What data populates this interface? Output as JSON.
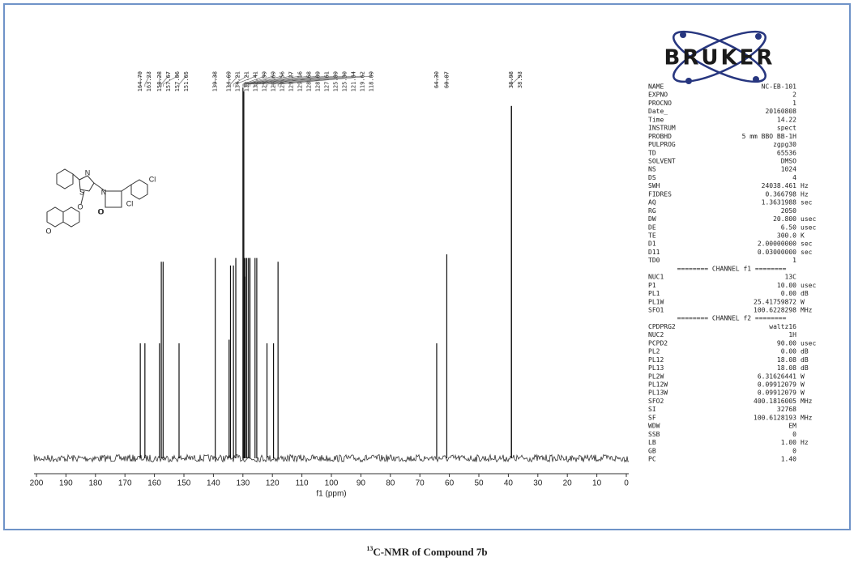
{
  "chart_data": {
    "type": "spectrum",
    "xlabel": "f1 (ppm)",
    "x": [
      164.79,
      163.23,
      158.28,
      157.67,
      157.06,
      151.65,
      139.38,
      134.69,
      134.21,
      133.21,
      132.41,
      129.99,
      129.69,
      129.56,
      129.27,
      129.16,
      128.68,
      128.09,
      127.61,
      125.89,
      125.3,
      121.84,
      119.62,
      118.09,
      64.3,
      60.87,
      38.98,
      38.93
    ],
    "x_labels": [
      "164.79",
      "163.23",
      "158.28",
      "157.67",
      "157.06",
      "151.65",
      "139.38",
      "134.69",
      "134.21",
      "133.21",
      "132.41",
      "129.99",
      "129.69",
      "129.56",
      "129.27",
      "129.16",
      "128.68",
      "128.09",
      "127.61",
      "125.89",
      "125.30",
      "121.84",
      "119.62",
      "118.09",
      "64.30",
      "60.87",
      "38.98",
      "38.93"
    ],
    "values": [
      31,
      31,
      31,
      53,
      53,
      31,
      54,
      32,
      52,
      52,
      54,
      100,
      99,
      54,
      49,
      54,
      54,
      54,
      54,
      54,
      54,
      31,
      31,
      53,
      31,
      55,
      95,
      95
    ],
    "color": "#111111",
    "xlim": [
      200,
      0
    ],
    "xticks": [
      200,
      190,
      180,
      170,
      160,
      150,
      140,
      130,
      120,
      110,
      100,
      90,
      80,
      70,
      60,
      50,
      40,
      30,
      20,
      10,
      0
    ],
    "ylim": [
      0,
      100
    ]
  },
  "logo": "BRUKER",
  "structure_labels": [
    "N",
    "S",
    "O",
    "O",
    "O",
    "N",
    "O",
    "Cl",
    "Cl"
  ],
  "parameters": [
    [
      "NAME",
      "NC-EB-101"
    ],
    [
      "EXPNO",
      "2"
    ],
    [
      "PROCNO",
      "1"
    ],
    [
      "Date_",
      "20160808"
    ],
    [
      "Time",
      "14.22"
    ],
    [
      "INSTRUM",
      "spect"
    ],
    [
      "PROBHD",
      "5 mm BBO BB-1H"
    ],
    [
      "PULPROG",
      "zgpg30"
    ],
    [
      "TD",
      "65536"
    ],
    [
      "SOLVENT",
      "DMSO"
    ],
    [
      "NS",
      "1024"
    ],
    [
      "DS",
      "4"
    ],
    [
      "SWH",
      "24038.461",
      "Hz"
    ],
    [
      "FIDRES",
      "0.366798",
      "Hz"
    ],
    [
      "AQ",
      "1.3631988",
      "sec"
    ],
    [
      "RG",
      "2050"
    ],
    [
      "DW",
      "20.800",
      "usec"
    ],
    [
      "DE",
      "6.50",
      "usec"
    ],
    [
      "TE",
      "300.0",
      "K"
    ],
    [
      "D1",
      "2.00000000",
      "sec"
    ],
    [
      "D11",
      "0.03000000",
      "sec"
    ],
    [
      "TD0",
      "1"
    ],
    [
      "======== CHANNEL f1 ========"
    ],
    [
      "NUC1",
      "13C"
    ],
    [
      "P1",
      "10.00",
      "usec"
    ],
    [
      "PL1",
      "0.00",
      "dB"
    ],
    [
      "PL1W",
      "25.41759872",
      "W"
    ],
    [
      "SFO1",
      "100.6228298",
      "MHz"
    ],
    [
      "======== CHANNEL f2 ========"
    ],
    [
      "CPDPRG2",
      "waltz16"
    ],
    [
      "NUC2",
      "1H"
    ],
    [
      "PCPD2",
      "90.00",
      "usec"
    ],
    [
      "PL2",
      "0.00",
      "dB"
    ],
    [
      "PL12",
      "18.08",
      "dB"
    ],
    [
      "PL13",
      "18.08",
      "dB"
    ],
    [
      "PL2W",
      "6.31626441",
      "W"
    ],
    [
      "PL12W",
      "0.09912079",
      "W"
    ],
    [
      "PL13W",
      "0.09912079",
      "W"
    ],
    [
      "SFO2",
      "400.1816005",
      "MHz"
    ],
    [
      "SI",
      "32768"
    ],
    [
      "SF",
      "100.6128193",
      "MHz"
    ],
    [
      "WDW",
      "EM"
    ],
    [
      "SSB",
      "0"
    ],
    [
      "LB",
      "1.00",
      "Hz"
    ],
    [
      "GB",
      "0"
    ],
    [
      "PC",
      "1.40"
    ]
  ],
  "caption": {
    "superscript": "13",
    "text": "C-NMR of Compound 7b"
  }
}
